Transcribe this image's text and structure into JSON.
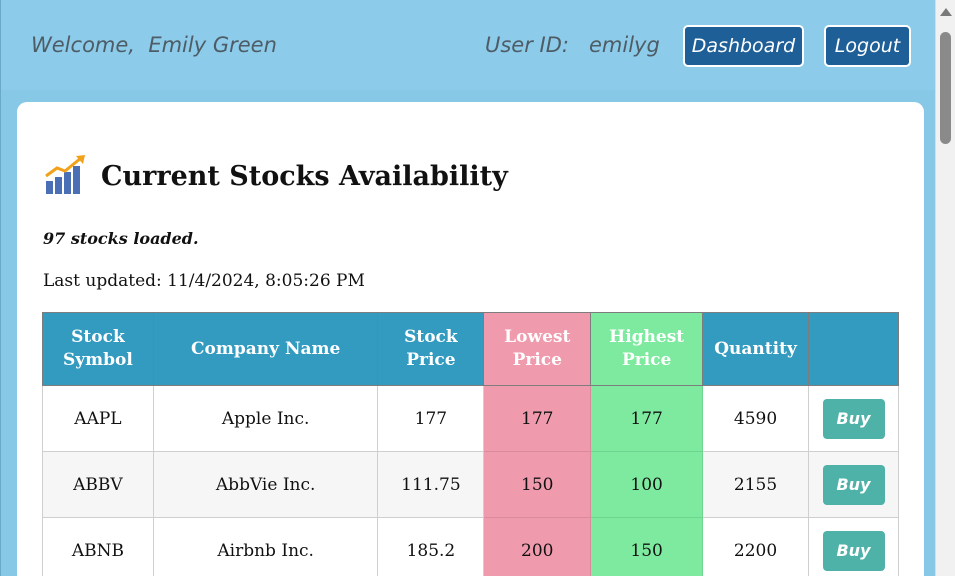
{
  "header": {
    "welcome_prefix": "Welcome,",
    "user_name": "Emily Green",
    "user_id_label": "User ID:",
    "user_id": "emilyg",
    "dashboard_label": "Dashboard",
    "logout_label": "Logout"
  },
  "main": {
    "title_icon": "chart-increasing-icon",
    "title": "Current Stocks Availability",
    "loaded_text": "97 stocks loaded.",
    "last_updated": "Last updated: 11/4/2024, 8:05:26 PM"
  },
  "table": {
    "headers": [
      "Stock Symbol",
      "Company Name",
      "Stock Price",
      "Lowest Price",
      "Highest Price",
      "Quantity",
      ""
    ],
    "rows": [
      {
        "symbol": "AAPL",
        "company": "Apple Inc.",
        "price": "177",
        "lowest": "177",
        "highest": "177",
        "quantity": "4590",
        "action": "Buy"
      },
      {
        "symbol": "ABBV",
        "company": "AbbVie Inc.",
        "price": "111.75",
        "lowest": "150",
        "highest": "100",
        "quantity": "2155",
        "action": "Buy"
      },
      {
        "symbol": "ABNB",
        "company": "Airbnb Inc.",
        "price": "185.2",
        "lowest": "200",
        "highest": "150",
        "quantity": "2200",
        "action": "Buy"
      }
    ]
  },
  "colors": {
    "header_bg": "#8ccbe9",
    "button_bg": "#1e5f97",
    "table_header": "#339ac0",
    "lowest_col": "#ef9aad",
    "highest_col": "#7eeaa0",
    "buy_button": "#4fb2a8"
  }
}
